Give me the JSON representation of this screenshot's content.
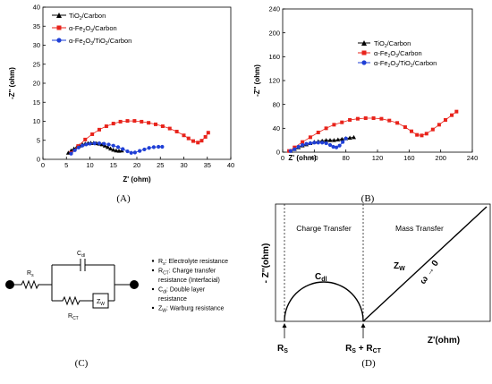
{
  "panels": [
    "(A)",
    "(B)",
    "(C)",
    "(D)"
  ],
  "chart_data": [
    {
      "type": "scatter",
      "panel": "(A)",
      "xlabel": "Z' (ohm)",
      "ylabel": "-Z'' (ohm)",
      "xlim": [
        0,
        40
      ],
      "ylim": [
        0,
        40
      ],
      "xticks": [
        "0",
        "5",
        "10",
        "15",
        "20",
        "25",
        "30",
        "35",
        "40"
      ],
      "yticks": [
        "0",
        "5",
        "10",
        "15",
        "20",
        "25",
        "30",
        "35",
        "40"
      ],
      "legend_position": "top-left",
      "series": [
        {
          "name": "TiO2/Carbon",
          "color": "#000000",
          "marker": "triangle",
          "x": [
            5.4,
            6.0,
            6.6,
            7.2,
            7.8,
            8.4,
            9.0,
            9.6,
            10.2,
            10.8,
            11.4,
            12.0,
            12.6,
            13.2,
            13.8,
            14.4,
            15.0,
            15.6,
            16.2,
            16.8
          ],
          "y": [
            1.7,
            2.3,
            2.8,
            3.2,
            3.6,
            3.9,
            4.1,
            4.2,
            4.3,
            4.3,
            4.2,
            4.1,
            3.9,
            3.6,
            3.2,
            2.8,
            2.5,
            2.3,
            2.2,
            2.3
          ]
        },
        {
          "name": "α-Fe2O3/Carbon",
          "color": "#e8231b",
          "marker": "square",
          "x": [
            6.0,
            7.5,
            9.0,
            10.5,
            12.0,
            13.5,
            15.0,
            16.5,
            18.0,
            19.5,
            21.0,
            22.5,
            24.0,
            25.5,
            27.0,
            28.5,
            30.0,
            31.0,
            32.0,
            33.0,
            33.8,
            34.6,
            35.2
          ],
          "y": [
            1.7,
            3.5,
            5.2,
            6.6,
            7.8,
            8.7,
            9.4,
            9.9,
            10.1,
            10.1,
            9.9,
            9.6,
            9.2,
            8.7,
            8.1,
            7.3,
            6.3,
            5.5,
            4.8,
            4.4,
            4.9,
            5.9,
            7.0
          ]
        },
        {
          "name": "α-Fe2O3/TiO2/Carbon",
          "color": "#1f3fd6",
          "marker": "circle",
          "x": [
            6.0,
            6.8,
            7.6,
            8.4,
            9.2,
            10.0,
            11.0,
            12.0,
            13.0,
            14.0,
            15.0,
            16.0,
            17.0,
            18.0,
            18.8,
            19.6,
            20.6,
            21.6,
            22.6,
            23.6,
            24.6,
            25.4
          ],
          "y": [
            1.5,
            2.4,
            3.1,
            3.6,
            3.9,
            4.1,
            4.2,
            4.2,
            4.1,
            3.9,
            3.6,
            3.2,
            2.7,
            2.1,
            1.7,
            1.8,
            2.2,
            2.6,
            3.0,
            3.2,
            3.3,
            3.3
          ]
        }
      ]
    },
    {
      "type": "scatter",
      "panel": "(B)",
      "xlabel": "Z' (ohm)",
      "ylabel": "-Z'' (ohm)",
      "xlim": [
        0,
        240
      ],
      "ylim": [
        0,
        240
      ],
      "xticks": [
        "0",
        "40",
        "80",
        "120",
        "160",
        "200",
        "240"
      ],
      "yticks": [
        "0",
        "40",
        "80",
        "120",
        "160",
        "200",
        "240"
      ],
      "legend_position": "center-right",
      "series": [
        {
          "name": "TiO2/Carbon",
          "color": "#000000",
          "marker": "triangle",
          "x": [
            10,
            15,
            20,
            25,
            30,
            35,
            40,
            45,
            50,
            55,
            60,
            65,
            70,
            75,
            80,
            85,
            90
          ],
          "y": [
            2,
            5,
            8,
            11,
            13,
            15,
            17,
            18,
            19,
            20,
            20,
            20,
            21,
            22,
            23,
            24,
            25
          ]
        },
        {
          "name": "α-Fe2O3/Carbon",
          "color": "#e8231b",
          "marker": "square",
          "x": [
            8,
            15,
            25,
            35,
            45,
            55,
            65,
            75,
            85,
            95,
            105,
            115,
            125,
            135,
            145,
            155,
            163,
            170,
            176,
            182,
            190,
            198,
            206,
            214,
            220
          ],
          "y": [
            2,
            8,
            17,
            25,
            33,
            40,
            46,
            50,
            54,
            56,
            57,
            57,
            56,
            53,
            49,
            42,
            35,
            29,
            28,
            31,
            38,
            46,
            54,
            62,
            68
          ]
        },
        {
          "name": "α-Fe2O3/TiO2/Carbon",
          "color": "#1f3fd6",
          "marker": "circle",
          "x": [
            10,
            15,
            20,
            25,
            30,
            35,
            40,
            45,
            50,
            55,
            60,
            64,
            68,
            72,
            76,
            80
          ],
          "y": [
            2,
            5,
            9,
            12,
            14,
            15,
            16,
            16,
            16,
            15,
            12,
            9,
            8,
            11,
            17,
            23
          ]
        }
      ]
    }
  ],
  "panelC": {
    "labels": {
      "rs": "R",
      "rs_sub": "s",
      "cdl": "C",
      "cdl_sub": "dl",
      "rct": "R",
      "rct_sub": "CT",
      "zw": "Z",
      "zw_sub": "W"
    },
    "bullets": [
      {
        "main": "R",
        "sub": "s",
        "text": ": Electrolyte resistance"
      },
      {
        "main": "R",
        "sub": "CT",
        "text": ": Charge transfer"
      },
      {
        "main": "",
        "sub": "",
        "text": "resistance (Interfacial)"
      },
      {
        "main": "C",
        "sub": "dl",
        "text": ": Double layer"
      },
      {
        "main": "",
        "sub": "",
        "text": "resistance"
      },
      {
        "main": "Z",
        "sub": "W",
        "text": ": Warburg resistance"
      }
    ]
  },
  "panelD": {
    "region1": "Charge Transfer",
    "region2": "Mass Transfer",
    "ylabel": "- Z''(ohm)",
    "xlabel": "Z'(ohm)",
    "cdl_main": "C",
    "cdl_sub": "dl",
    "zw_main": "Z",
    "zw_sub": "W",
    "omega": "ω → 0",
    "rs_main": "R",
    "rs_sub": "S",
    "rsrct": "R",
    "rsrct_sub1": "S",
    "rsrct_mid": " + R",
    "rsrct_sub2": "CT"
  }
}
